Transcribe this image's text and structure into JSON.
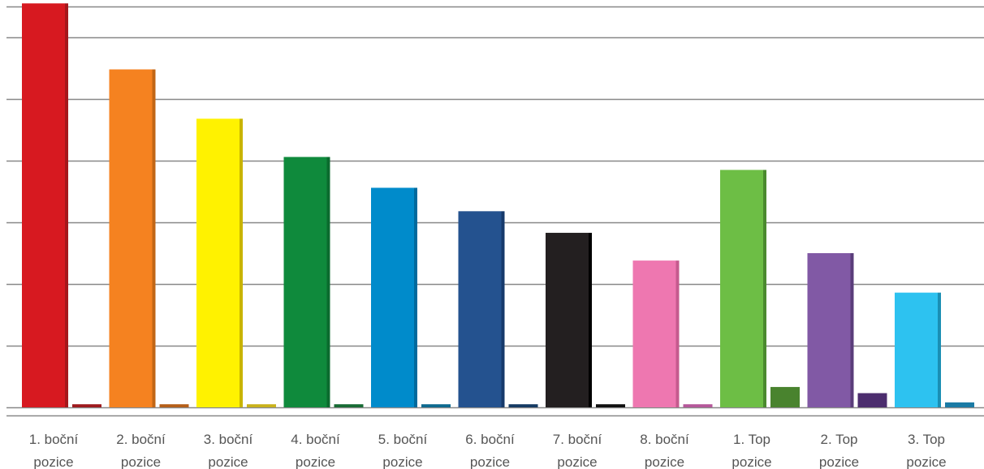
{
  "chart_data": {
    "type": "bar",
    "title": "",
    "xlabel": "",
    "ylabel": "",
    "ylim": [
      0,
      6.5
    ],
    "grid": true,
    "legend": "none",
    "categories": [
      [
        "1. boční",
        "pozice"
      ],
      [
        "2. boční",
        "pozice"
      ],
      [
        "3. boční",
        "pozice"
      ],
      [
        "4. boční",
        "pozice"
      ],
      [
        "5. boční",
        "pozice"
      ],
      [
        "6. boční",
        "pozice"
      ],
      [
        "7. boční",
        "pozice"
      ],
      [
        "8. boční",
        "pozice"
      ],
      [
        "1. Top",
        "pozice"
      ],
      [
        "2. Top",
        "pozice"
      ],
      [
        "3. Top",
        "pozice"
      ]
    ],
    "series": [
      {
        "values": [
          6.55,
          5.48,
          4.68,
          4.06,
          3.56,
          3.18,
          2.83,
          2.38,
          3.85,
          2.5,
          1.86
        ]
      },
      {
        "values": [
          0.05,
          0.05,
          0.05,
          0.05,
          0.05,
          0.05,
          0.05,
          0.05,
          0.33,
          0.23,
          0.08
        ]
      }
    ],
    "colors": {
      "main": [
        "#d71920",
        "#f58220",
        "#fff200",
        "#0f8a3c",
        "#008bcb",
        "#24528f",
        "#231f20",
        "#ee77b0",
        "#6dbe45",
        "#8159a5",
        "#2dc2f0"
      ],
      "main_shade": [
        "#a5171b",
        "#c26615",
        "#c9b400",
        "#0b6b2e",
        "#006a9d",
        "#163a6b",
        "#000000",
        "#c55a8e",
        "#4b8a2e",
        "#5a3d7a",
        "#1a8fb4"
      ],
      "small": [
        "#9e1b1e",
        "#b55f19",
        "#c9b21c",
        "#176b34",
        "#0e6a8f",
        "#153a63",
        "#111111",
        "#b5589a",
        "#49832e",
        "#4c2d6e",
        "#1b7ba5"
      ],
      "grid": "#888888"
    }
  }
}
